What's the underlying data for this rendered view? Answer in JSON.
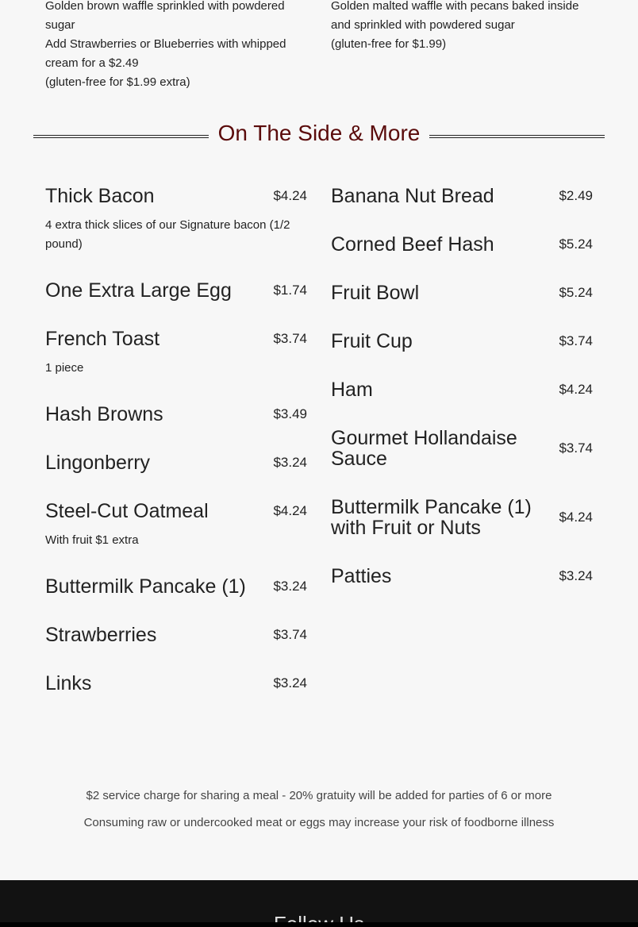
{
  "previous_items": {
    "left_description": [
      "Golden brown waffle sprinkled with powdered sugar",
      "Add Strawberries or Blueberries with whipped cream for a $2.49",
      "(gluten-free for $1.99 extra)"
    ],
    "right_description": [
      "Golden malted waffle with pecans baked inside and sprinkled with powdered sugar",
      "(gluten-free for $1.99)"
    ]
  },
  "section": {
    "title": "On The Side & More",
    "title_color": "#5a0b0b"
  },
  "left_items": [
    {
      "name": "Thick Bacon",
      "price": "$4.24",
      "description": "4 extra thick slices of our Signature bacon (1/2 pound)"
    },
    {
      "name": "One Extra Large Egg",
      "price": "$1.74"
    },
    {
      "name": "French Toast",
      "price": "$3.74",
      "description": "1 piece"
    },
    {
      "name": "Hash Browns",
      "price": "$3.49"
    },
    {
      "name": "Lingonberry",
      "price": "$3.24"
    },
    {
      "name": "Steel-Cut Oatmeal",
      "price": "$4.24",
      "description": "With fruit $1 extra"
    },
    {
      "name": "Buttermilk Pancake (1)",
      "price": "$3.24"
    },
    {
      "name": "Strawberries",
      "price": "$3.74"
    },
    {
      "name": "Links",
      "price": "$3.24"
    }
  ],
  "right_items": [
    {
      "name": "Banana Nut Bread",
      "price": "$2.49"
    },
    {
      "name": "Corned Beef Hash",
      "price": "$5.24"
    },
    {
      "name": "Fruit Bowl",
      "price": "$5.24"
    },
    {
      "name": "Fruit Cup",
      "price": "$3.74"
    },
    {
      "name": "Ham",
      "price": "$4.24"
    },
    {
      "name": "Gourmet Hollandaise Sauce",
      "price": "$3.74"
    },
    {
      "name": "Buttermilk Pancake (1) with Fruit or Nuts",
      "price": "$4.24"
    },
    {
      "name": "Patties",
      "price": "$3.24"
    }
  ],
  "notes": [
    "$2 service charge for sharing a meal - 20% gratuity will be added for parties of 6 or more",
    "Consuming raw or undercooked meat or eggs may increase your risk of foodborne illness"
  ],
  "footer": {
    "title": "Follow Us"
  }
}
